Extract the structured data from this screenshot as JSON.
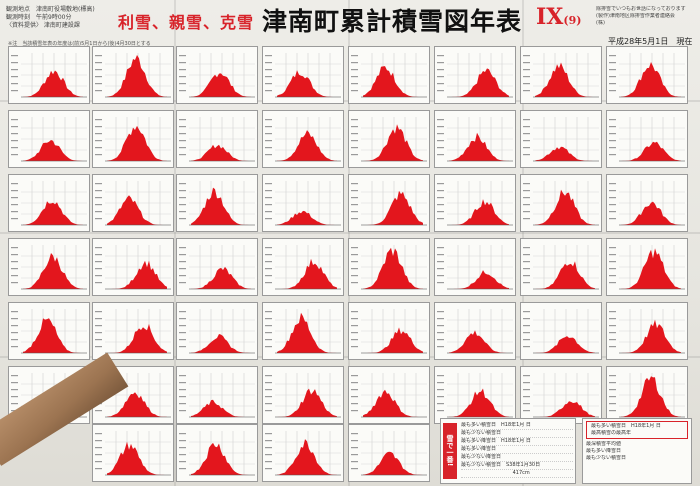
{
  "header": {
    "slogan": "利雪、親雪、克雪",
    "title": "津南町累計積雪図年表",
    "volume": "IX",
    "issue": "(9)",
    "left_lines": [
      "観測地点　津南町役場敷地(標高)",
      "観測時刻　午前9時00分",
      "〈資料提供〉 津南町建設課"
    ],
    "note": "※注　当該積雪年表の年度は(前)5月1日から(後)4月30日とする",
    "right_lines": [
      "除排雪でいつもお世話になっております",
      "(製作)津南地区除排雪作業者連絡会",
      "(株)",
      "",
      "",
      ""
    ],
    "date": "平成28年5月1日　現在"
  },
  "legend": {
    "badge": "雪で一番!",
    "rows": [
      "最も多い積雪日　H18年1月 日",
      "最も少ない積雪日",
      "最も多い降雪日　H18年1月 日",
      "最も多い降雪日",
      "最も少ない降雪日",
      "最も少ない積雪日　S38年1月30日",
      "　　　　　　　　　　 417cm"
    ]
  },
  "summary": {
    "rows": [
      "最も多い積雪日　H18年1月 日",
      "最高積雪の最高年",
      "最深積雪平均値",
      "最も多い降雪日",
      "最も少ない積雪日"
    ]
  },
  "chart_data": [
    {
      "type": "area",
      "title": "",
      "values": []
    }
  ]
}
